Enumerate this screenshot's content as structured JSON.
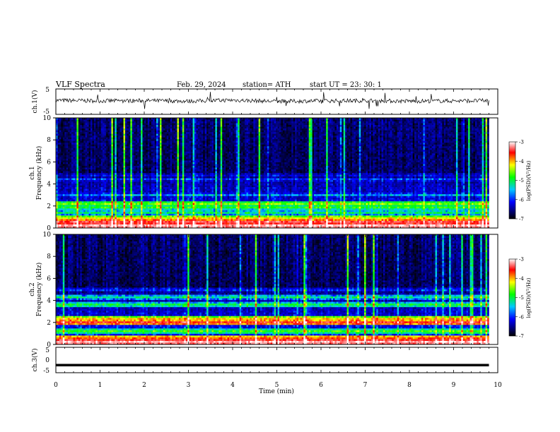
{
  "header": {
    "title": "VLF  Spectra",
    "date": "Feb. 29, 2024",
    "station": "station= ATH",
    "start": "start  UT  =    23: 30: 1"
  },
  "colorbar": {
    "label": "log(PSD)(V²/Hz)",
    "ticks": [
      "-3",
      "-4",
      "-5",
      "-6",
      "-7"
    ],
    "colors": [
      "#ffffff",
      "#ff0000",
      "#ffff00",
      "#00ff00",
      "#00c8ff",
      "#0000ff",
      "#000060",
      "#000000"
    ]
  },
  "chart_data": [
    {
      "type": "line",
      "panel": "ch1-waveform",
      "ylabel": "ch.1(V)",
      "ylim": [
        -5,
        5
      ],
      "yticks": [
        "5",
        "-5"
      ],
      "x": [
        0,
        1,
        2,
        3,
        4,
        5,
        6,
        7,
        8,
        9,
        9.8
      ],
      "values": [
        0.5,
        0.3,
        0.4,
        0.2,
        0.6,
        0.1,
        0.3,
        0.4,
        0.2,
        0.3,
        0.4
      ],
      "xlim": [
        0,
        10
      ]
    },
    {
      "type": "heatmap",
      "panel": "ch1-spectrogram",
      "ylabel": "ch.1",
      "ylabel2": "Frequency  (kHz)",
      "ylim": [
        0,
        10
      ],
      "yticks": [
        "10",
        "8",
        "6",
        "4",
        "2",
        "0"
      ],
      "xlim": [
        0,
        10
      ],
      "data_end_min": 9.8,
      "bands_khz": [
        {
          "f": 0.2,
          "level": -3.2
        },
        {
          "f": 0.5,
          "level": -3.5
        },
        {
          "f": 0.9,
          "level": -4.5
        },
        {
          "f": 1.4,
          "level": -5.3
        },
        {
          "f": 1.9,
          "level": -5.0
        },
        {
          "f": 2.2,
          "level": -4.8
        },
        {
          "f": 3.0,
          "level": -5.8
        },
        {
          "f": 4.4,
          "level": -6.0
        },
        {
          "f": 4.8,
          "level": -6.2
        }
      ]
    },
    {
      "type": "heatmap",
      "panel": "ch2-spectrogram",
      "ylabel": "ch.2",
      "ylabel2": "Frequency  (kHz)",
      "ylim": [
        0,
        10
      ],
      "yticks": [
        "10",
        "8",
        "6",
        "4",
        "2",
        "0"
      ],
      "xlim": [
        0,
        10
      ],
      "data_end_min": 9.8,
      "bands_khz": [
        {
          "f": 0.2,
          "level": -3.2
        },
        {
          "f": 0.6,
          "level": -4.0
        },
        {
          "f": 1.2,
          "level": -5.0
        },
        {
          "f": 2.0,
          "level": -3.8
        },
        {
          "f": 2.3,
          "level": -4.3
        },
        {
          "f": 3.6,
          "level": -5.2
        },
        {
          "f": 4.3,
          "level": -5.4
        },
        {
          "f": 5.0,
          "level": -5.9
        }
      ]
    },
    {
      "type": "line",
      "panel": "ch3-waveform",
      "ylabel": "ch.3(V)",
      "ylim": [
        -5,
        5
      ],
      "yticks": [
        "5",
        "0",
        "-5"
      ],
      "x": [
        0,
        9.8
      ],
      "values": [
        -2,
        -2
      ],
      "xlim": [
        0,
        10
      ],
      "xlabel": "Time  (min)",
      "xticks": [
        "0",
        "1",
        "2",
        "3",
        "4",
        "5",
        "6",
        "7",
        "8",
        "9",
        "10"
      ]
    }
  ]
}
